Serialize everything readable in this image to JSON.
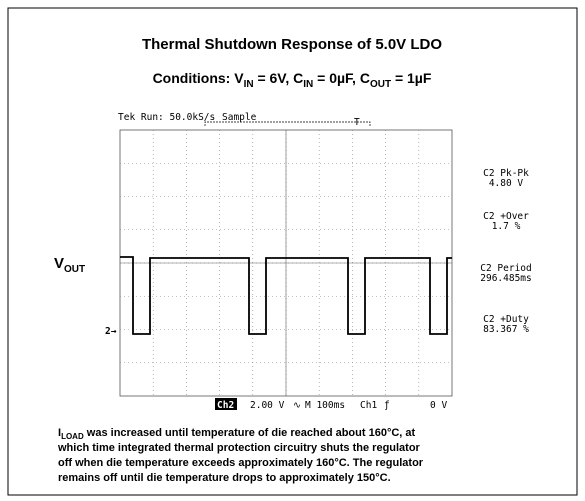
{
  "figure": {
    "title": "Thermal Shutdown Response of 5.0V LDO",
    "conditions": [
      "Conditions: V",
      "IN",
      " = 6V, C",
      "IN",
      " = 0µF, C",
      "OUT",
      " = 1µF"
    ],
    "scope": {
      "header": [
        "Tek Run: 50.0kS/s",
        "Sample"
      ],
      "trace_label": [
        "V",
        "OUT"
      ],
      "channel_marker": "2→",
      "readouts": [
        [
          "C2 Pk-Pk",
          "4.80 V"
        ],
        [
          "C2 +Over",
          "1.7 %"
        ],
        [
          "C2 Period",
          "296.485ms"
        ],
        [
          "C2 +Duty",
          "83.367 %"
        ]
      ],
      "footer": [
        "Ch2",
        "2.00 V",
        "M 100ms",
        "Ch1",
        "0 V"
      ]
    },
    "caption": [
      "I",
      "LOAD",
      " was increased until temperature of die reached about 160°C, at",
      "which time integrated thermal protection circuitry shuts the regulator",
      "off when die temperature exceeds approximately 160°C. The regulator",
      "remains off until die temperature drops to approximately 150°C."
    ]
  }
}
